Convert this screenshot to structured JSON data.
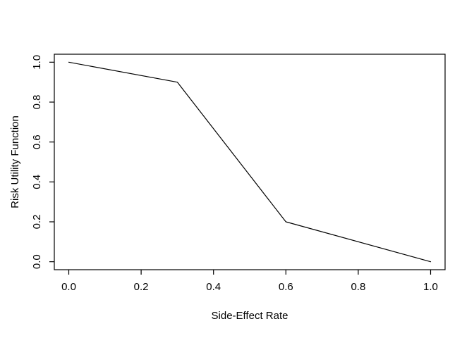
{
  "figure": {
    "background_color": "#ffffff",
    "foreground_color": "#000000"
  },
  "chart_data": {
    "type": "line",
    "title": "",
    "xlabel": "Side-Effect Rate",
    "ylabel": "Risk Utility Function",
    "x": [
      0.0,
      0.3,
      0.6,
      1.0
    ],
    "y": [
      1.0,
      0.9,
      0.2,
      0.0
    ],
    "x_ticks": [
      0.0,
      0.2,
      0.4,
      0.6,
      0.8,
      1.0
    ],
    "y_ticks": [
      0.0,
      0.2,
      0.4,
      0.6,
      0.8,
      1.0
    ],
    "x_tick_labels": [
      "0.0",
      "0.2",
      "0.4",
      "0.6",
      "0.8",
      "1.0"
    ],
    "y_tick_labels": [
      "0.0",
      "0.2",
      "0.4",
      "0.6",
      "0.8",
      "1.0"
    ],
    "xlim": [
      -0.04,
      1.04
    ],
    "ylim": [
      -0.04,
      1.04
    ],
    "grid": false,
    "legend": null,
    "line_color": "#000000",
    "box_color": "#000000"
  }
}
